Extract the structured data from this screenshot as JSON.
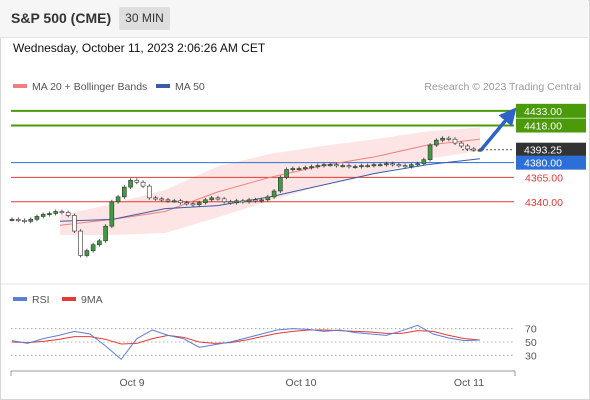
{
  "header": {
    "title": "S&P 500 (CME)",
    "timeframe": "30 MIN",
    "datetime": "Wednesday, October 11, 2023 2:06:26 AM CET"
  },
  "legend": {
    "ma20_label": "MA 20 + Bollinger Bands",
    "ma50_label": "MA 50",
    "copyright": "Research © 2023 Trading Central"
  },
  "rsi_legend": {
    "rsi_label": "RSI",
    "ma_label": "9MA"
  },
  "colors": {
    "resistance": "#4a9a0a",
    "current": "#333333",
    "pivot": "#2c6fd6",
    "support": "#e53935",
    "ma20": "#f08080",
    "ma50": "#3a5ba8",
    "bollinger_fill": "#fde0e0",
    "rsi": "#5b7fd6",
    "rsi_ma": "#e53935",
    "arrow": "#2d62c8"
  },
  "chart_data": [
    {
      "type": "line",
      "ylim": [
        4262,
        4440
      ],
      "x_ticks": [
        "Oct 9",
        "Oct 10",
        "Oct 11"
      ],
      "series": [
        {
          "name": "S&P 500 (CME)",
          "values": [
            4322,
            4321,
            4320,
            4322,
            4325,
            4327,
            4328,
            4330,
            4329,
            4326,
            4310,
            4285,
            4290,
            4296,
            4300,
            4315,
            4340,
            4345,
            4355,
            4362,
            4360,
            4356,
            4344,
            4343,
            4342,
            4341,
            4341,
            4339,
            4338,
            4337,
            4339,
            4342,
            4344,
            4343,
            4340,
            4339,
            4341,
            4340,
            4342,
            4341,
            4342,
            4345,
            4351,
            4365,
            4373,
            4374,
            4374,
            4375,
            4376,
            4377,
            4378,
            4378,
            4377,
            4377,
            4376,
            4376,
            4377,
            4377,
            4378,
            4378,
            4379,
            4378,
            4377,
            4376,
            4378,
            4379,
            4383,
            4398,
            4403,
            4405,
            4404,
            4400,
            4397,
            4394,
            4393,
            4393
          ]
        },
        {
          "name": "MA 20",
          "values": [
            4316,
            4322,
            4330,
            4350,
            4365,
            4377,
            4386,
            4398,
            4404
          ]
        },
        {
          "name": "MA 50",
          "values": [
            4320,
            4322,
            4333,
            4336,
            4345,
            4357,
            4369,
            4378,
            4384
          ]
        }
      ],
      "levels": [
        {
          "label": "4433.00",
          "value": 4433.0,
          "kind": "resistance"
        },
        {
          "label": "4418.00",
          "value": 4418.0,
          "kind": "resistance"
        },
        {
          "label": "4393.25",
          "value": 4393.25,
          "kind": "current"
        },
        {
          "label": "4380.00",
          "value": 4380.0,
          "kind": "pivot"
        },
        {
          "label": "4365.00",
          "value": 4365.0,
          "kind": "support"
        },
        {
          "label": "4340.00",
          "value": 4340.0,
          "kind": "support"
        }
      ]
    },
    {
      "type": "line",
      "ylim": [
        20,
        80
      ],
      "y_ticks": [
        70,
        50,
        30
      ],
      "x_ticks": [
        "Oct 9",
        "Oct 10",
        "Oct 11"
      ],
      "series": [
        {
          "name": "RSI",
          "values": [
            52,
            48,
            55,
            60,
            66,
            62,
            44,
            24,
            55,
            68,
            60,
            55,
            42,
            46,
            50,
            56,
            62,
            68,
            70,
            69,
            66,
            68,
            64,
            62,
            60,
            67,
            75,
            62,
            56,
            52,
            53
          ]
        },
        {
          "name": "9MA",
          "values": [
            50,
            49,
            51,
            54,
            58,
            58,
            54,
            47,
            48,
            55,
            60,
            57,
            50,
            48,
            49,
            53,
            58,
            63,
            66,
            68,
            68,
            67,
            66,
            65,
            63,
            63,
            67,
            66,
            60,
            55,
            53
          ]
        }
      ]
    }
  ]
}
